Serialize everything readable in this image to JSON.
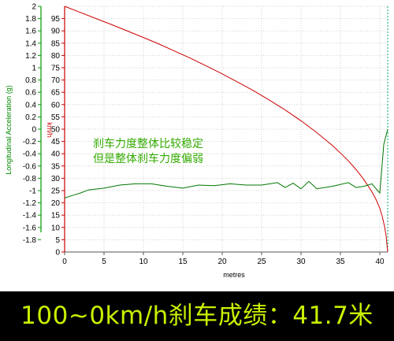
{
  "chart_data": {
    "type": "line",
    "xlabel": "metres",
    "ylabel_left": "Longitudinal Acceleration (g)",
    "ylabel_right": "km/h",
    "xlim": [
      0,
      41
    ],
    "ylim_left": [
      -2,
      2
    ],
    "ylim_right": [
      0,
      100
    ],
    "x_ticks": [
      "0",
      "5",
      "10",
      "15",
      "20",
      "25",
      "30",
      "35",
      "40"
    ],
    "y_left_ticks": [
      "2",
      "1.8",
      "1.6",
      "1.4",
      "1.2",
      "1",
      "0.8",
      "0.6",
      "0.4",
      "0.2",
      "0",
      "-0.2",
      "-0.4",
      "-0.6",
      "-0.8",
      "-1",
      "-1.2",
      "-1.4",
      "-1.6",
      "-1.8"
    ],
    "y_right_ticks": [
      "95",
      "90",
      "85",
      "80",
      "75",
      "70",
      "65",
      "60",
      "55",
      "50",
      "45",
      "40",
      "35",
      "30",
      "25",
      "20",
      "15",
      "10",
      "5",
      "0"
    ],
    "grid": true,
    "series": [
      {
        "axis": "right",
        "color": "#cc0000",
        "x": [
          0,
          2,
          4,
          6,
          8,
          10,
          12,
          14,
          16,
          18,
          20,
          22,
          24,
          26,
          28,
          30,
          32,
          34,
          35,
          36,
          37,
          38,
          39,
          39.5,
          40,
          40.3,
          40.6,
          40.8,
          41
        ],
        "y": [
          100,
          97.5,
          95,
          92.5,
          89.9,
          87.3,
          84.6,
          81.7,
          78.8,
          75.7,
          72.5,
          69.1,
          65.6,
          61.8,
          57.8,
          53.4,
          48.6,
          43.3,
          40.3,
          37.1,
          33.5,
          29.4,
          24.5,
          21.5,
          17.8,
          14.6,
          10.4,
          6.5,
          0
        ]
      },
      {
        "axis": "left",
        "color": "#007700",
        "x": [
          0,
          1,
          2,
          3,
          5,
          7,
          9,
          11,
          13,
          15,
          17,
          19,
          21,
          23,
          25,
          27,
          28,
          29,
          30,
          31,
          32,
          34,
          36,
          37,
          38,
          39,
          40,
          40.5,
          41
        ],
        "y": [
          -1.12,
          -1.08,
          -1.04,
          -0.99,
          -0.96,
          -0.91,
          -0.89,
          -0.89,
          -0.93,
          -0.96,
          -0.91,
          -0.92,
          -0.89,
          -0.91,
          -0.91,
          -0.87,
          -0.95,
          -0.88,
          -0.97,
          -0.85,
          -0.97,
          -0.93,
          -0.87,
          -0.95,
          -0.93,
          -0.89,
          -1.04,
          -0.25,
          0.0
        ]
      }
    ],
    "annotation": [
      "刹车力度整体比较稳定",
      "但是整体刹车力度偏弱"
    ],
    "annotation_color": "#33aa00"
  },
  "banner": {
    "text": "100~0km/h刹车成绩：41.7米",
    "bg_color": "#000000",
    "text_color": "#c8f000"
  }
}
